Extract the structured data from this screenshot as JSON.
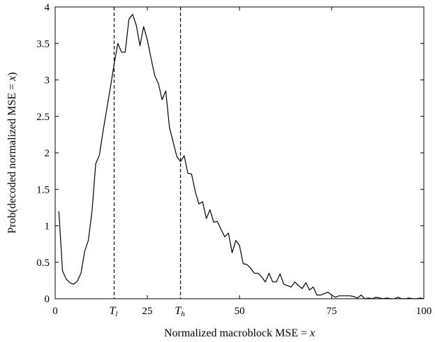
{
  "chart_data": {
    "type": "line",
    "title": "",
    "xlabel_parts": [
      {
        "text": "Normalized macroblock MSE = ",
        "italic": false
      },
      {
        "text": "x",
        "italic": true
      }
    ],
    "ylabel_parts": [
      {
        "text": "Prob(decoded normalized MSE = ",
        "italic": false
      },
      {
        "text": "x",
        "italic": true
      },
      {
        "text": ")",
        "italic": false
      }
    ],
    "xlim": [
      0,
      100
    ],
    "ylim": [
      0,
      4
    ],
    "xticks": [
      {
        "value": 0,
        "label": "0"
      },
      {
        "value": 25,
        "label": "25"
      },
      {
        "value": 50,
        "label": "50"
      },
      {
        "value": 75,
        "label": "75"
      },
      {
        "value": 100,
        "label": "100"
      }
    ],
    "yticks": [
      {
        "value": 0,
        "label": "0"
      },
      {
        "value": 0.5,
        "label": "0.5"
      },
      {
        "value": 1,
        "label": "1"
      },
      {
        "value": 1.5,
        "label": "1.5"
      },
      {
        "value": 2,
        "label": "2"
      },
      {
        "value": 2.5,
        "label": "2.5"
      },
      {
        "value": 3,
        "label": "3"
      },
      {
        "value": 3.5,
        "label": "3.5"
      },
      {
        "value": 4,
        "label": "4"
      }
    ],
    "vlines": [
      {
        "x": 16,
        "label": "T",
        "sub": "l"
      },
      {
        "x": 34,
        "label": "T",
        "sub": "h"
      }
    ],
    "grid": false,
    "legend": "none",
    "series": [
      {
        "color": "#000000",
        "x": [
          1,
          2,
          3,
          4,
          5,
          6,
          7,
          8,
          9,
          10,
          11,
          12,
          13,
          14,
          15,
          16,
          17,
          18,
          19,
          20,
          21,
          22,
          23,
          24,
          25,
          26,
          27,
          28,
          29,
          30,
          31,
          32,
          33,
          34,
          35,
          36,
          37,
          38,
          39,
          40,
          41,
          42,
          43,
          44,
          45,
          46,
          47,
          48,
          49,
          50,
          51,
          52,
          53,
          54,
          55,
          56,
          57,
          58,
          59,
          60,
          61,
          62,
          63,
          64,
          65,
          66,
          67,
          68,
          69,
          70,
          71,
          72,
          73,
          74,
          75,
          76,
          77,
          78,
          79,
          80,
          81,
          82,
          83,
          84,
          85,
          86,
          87,
          88,
          89,
          90,
          91,
          92,
          93,
          94,
          95,
          96,
          97,
          98,
          99,
          100
        ],
        "y": [
          1.2,
          0.38,
          0.27,
          0.22,
          0.2,
          0.24,
          0.35,
          0.65,
          0.8,
          1.2,
          1.85,
          1.97,
          2.3,
          2.6,
          2.9,
          3.22,
          3.5,
          3.38,
          3.38,
          3.83,
          3.9,
          3.75,
          3.47,
          3.73,
          3.55,
          3.3,
          3.06,
          2.95,
          2.73,
          2.85,
          2.35,
          2.15,
          1.95,
          1.88,
          1.96,
          1.72,
          1.71,
          1.47,
          1.3,
          1.33,
          1.1,
          1.22,
          1.05,
          1.06,
          0.95,
          0.85,
          0.9,
          0.63,
          0.8,
          0.73,
          0.48,
          0.47,
          0.42,
          0.35,
          0.35,
          0.3,
          0.23,
          0.35,
          0.23,
          0.23,
          0.34,
          0.2,
          0.18,
          0.16,
          0.23,
          0.18,
          0.14,
          0.22,
          0.12,
          0.16,
          0.05,
          0.05,
          0.07,
          0.09,
          0.05,
          0.02,
          0.04,
          0.04,
          0.04,
          0.04,
          0.03,
          0.01,
          0.05,
          0.0,
          0.01,
          0.0,
          0.02,
          0.01,
          0.0,
          0.01,
          0.0,
          0.0,
          0.02,
          0.0,
          0.0,
          0.01,
          0.0,
          0.0,
          0.01,
          0.0
        ]
      }
    ]
  }
}
